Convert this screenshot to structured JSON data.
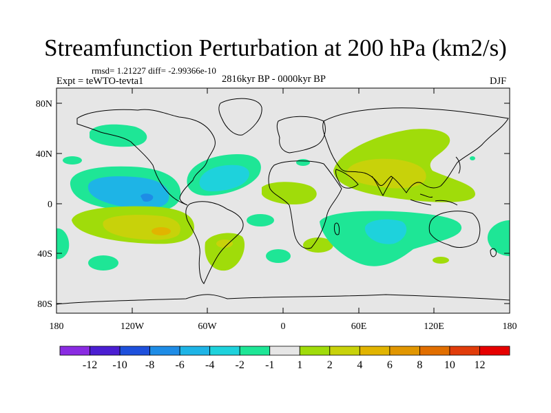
{
  "title": "Streamfunction Perturbation at 200 hPa (km2/s)",
  "stats": "rmsd= 1.21227 diff= -2.99366e-10",
  "experiment": "Expt = teWTO-tevta1",
  "period": "2816kyr BP - 0000kyr BP",
  "season": "DJF",
  "map": {
    "projection": "cylindrical equidistant",
    "lon_range": [
      -180,
      180
    ],
    "lat_range": [
      -90,
      90
    ],
    "lat_ticks": [
      "80N",
      "40N",
      "0",
      "40S",
      "80S"
    ],
    "lon_ticks": [
      "180",
      "120W",
      "60W",
      "0",
      "60E",
      "120E",
      "180"
    ],
    "background_value_range": "-1 to 1"
  },
  "colorbar": {
    "labels": [
      "-12",
      "-10",
      "-8",
      "-6",
      "-4",
      "-2",
      "-1",
      "1",
      "2",
      "4",
      "6",
      "8",
      "10",
      "12"
    ],
    "colors": [
      "#8a2be2",
      "#4b1ed2",
      "#1e50dc",
      "#1e8ce6",
      "#1eb4e6",
      "#1ed2dc",
      "#1ee696",
      "#e6e6e6",
      "#a0dc0a",
      "#c8d20a",
      "#e1b400",
      "#e19600",
      "#e16e00",
      "#e13c0a",
      "#e60000"
    ]
  },
  "fill_colors": {
    "green_neg": "#1ee696",
    "cyan_neg": "#1ed2dc",
    "blue_neg": "#1eb4e6",
    "lime_pos": "#a0dc0a",
    "yellow_pos": "#c8d20a",
    "orange_pos": "#e1b400"
  }
}
